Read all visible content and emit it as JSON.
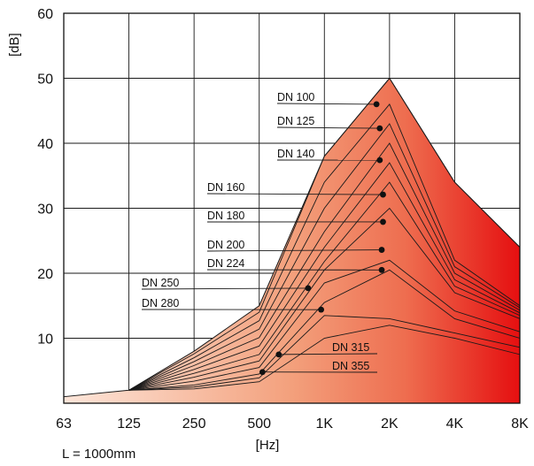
{
  "chart_data": {
    "type": "area",
    "ylabel": "[dB]",
    "xlabel": "[Hz]",
    "note": "L = 1000mm",
    "x_categories": [
      "63",
      "125",
      "250",
      "500",
      "1K",
      "2K",
      "4K",
      "8K"
    ],
    "ylim": [
      0,
      60
    ],
    "y_ticks": [
      10,
      20,
      30,
      40,
      50,
      60
    ],
    "grid": true,
    "colors": {
      "fill_light": "#fbd9c9",
      "fill_mid": "#f08a63",
      "fill_dark": "#e60f0f",
      "line": "#1a1a1a"
    },
    "envelope": [
      1,
      2,
      8,
      15,
      38,
      50,
      34,
      24
    ],
    "series": [
      {
        "name": "DN 100",
        "values": [
          null,
          2,
          7.6,
          14,
          38,
          50,
          34,
          24
        ],
        "marker_x": 4.8,
        "marker_y": 46
      },
      {
        "name": "DN 125",
        "values": [
          null,
          2,
          7,
          12.7,
          34,
          46,
          22,
          15
        ],
        "marker_x": 4.85,
        "marker_y": 42.3
      },
      {
        "name": "DN 140",
        "values": [
          null,
          2,
          6.4,
          11.4,
          30,
          43,
          21,
          14.7
        ],
        "marker_x": 4.85,
        "marker_y": 37.4
      },
      {
        "name": "DN 160",
        "values": [
          null,
          2,
          5.8,
          10.1,
          26.4,
          40,
          20,
          14.3
        ],
        "marker_x": 4.9,
        "marker_y": 32.1
      },
      {
        "name": "DN 180",
        "values": [
          null,
          2,
          5.2,
          8.8,
          24,
          37,
          19,
          13.9
        ],
        "marker_x": 4.9,
        "marker_y": 27.9
      },
      {
        "name": "DN 200",
        "values": [
          null,
          2,
          4.6,
          7.5,
          21.8,
          34,
          18,
          13.5
        ],
        "marker_x": 4.88,
        "marker_y": 23.6
      },
      {
        "name": "DN 224",
        "values": [
          null,
          2,
          4,
          6.5,
          20.5,
          30,
          17,
          13
        ],
        "marker_x": 4.88,
        "marker_y": 20.5
      },
      {
        "name": "DN 250",
        "values": [
          null,
          2,
          3.4,
          5.5,
          18.5,
          22,
          14.2,
          11
        ],
        "marker_x": 3.75,
        "marker_y": 17.7
      },
      {
        "name": "DN 280",
        "values": [
          null,
          2,
          2.8,
          4.5,
          15.5,
          20.5,
          13,
          10
        ],
        "marker_x": 3.95,
        "marker_y": 14.4
      },
      {
        "name": "DN 315",
        "values": [
          null,
          2,
          2.5,
          3.9,
          13.5,
          13,
          10.8,
          8.6
        ],
        "marker_x": 3.3,
        "marker_y": 7.5
      },
      {
        "name": "DN 355",
        "values": [
          null,
          2,
          2.2,
          3.3,
          10,
          12,
          10,
          7.5
        ],
        "marker_x": 3.05,
        "marker_y": 4.8
      }
    ]
  }
}
